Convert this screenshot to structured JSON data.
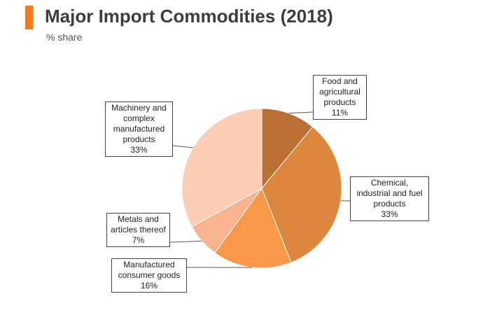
{
  "header": {
    "title": "Major Import Commodities (2018)",
    "subtitle": "% share"
  },
  "colors": {
    "accent": "#f47a20",
    "slices": [
      "#bb6f32",
      "#dd863e",
      "#f89848",
      "#f7b48f",
      "#fbcdb4"
    ]
  },
  "chart_data": {
    "type": "pie",
    "title": "Major Import Commodities (2018)",
    "subtitle": "% share",
    "slices": [
      {
        "label": "Food and agricultural products",
        "label_lines": [
          "Food and",
          "agricultural",
          "products"
        ],
        "value": 11,
        "value_label": "11%"
      },
      {
        "label": "Chemical, industrial and fuel products",
        "label_lines": [
          "Chemical,",
          "industrial and fuel",
          "products"
        ],
        "value": 33,
        "value_label": "33%"
      },
      {
        "label": "Manufactured consumer goods",
        "label_lines": [
          "Manufactured",
          "consumer goods"
        ],
        "value": 16,
        "value_label": "16%"
      },
      {
        "label": "Metals and articles thereof",
        "label_lines": [
          "Metals and",
          "articles thereof"
        ],
        "value": 7,
        "value_label": "7%"
      },
      {
        "label": "Machinery and complex manufactured products",
        "label_lines": [
          "Machinery and",
          "complex",
          "manufactured",
          "products"
        ],
        "value": 33,
        "value_label": "33%"
      }
    ],
    "legend": "none",
    "labels": "callout"
  }
}
